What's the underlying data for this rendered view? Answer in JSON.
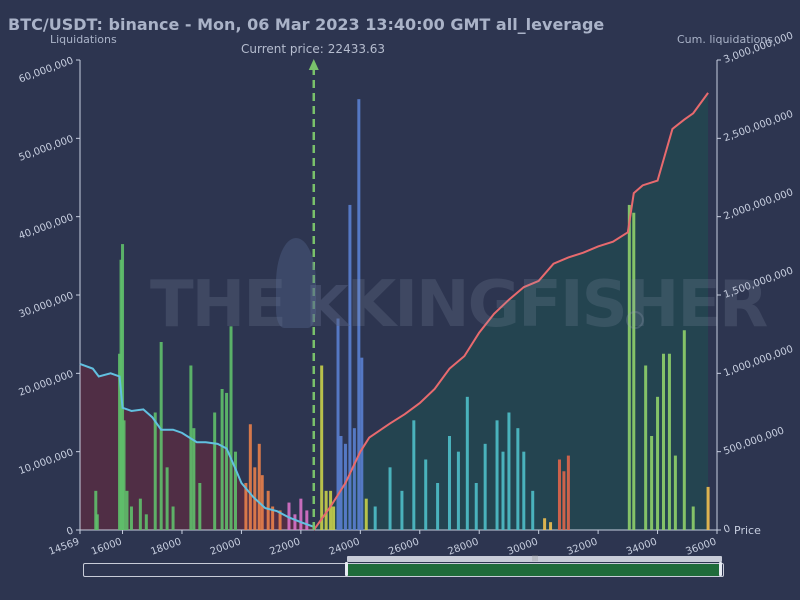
{
  "title": "BTC/USDT: binance - Mon, 06 Mar 2023 13:40:00 GMT all_leverage",
  "current_price_label": "Current price:",
  "current_price_value": "22433.63",
  "left_axis_label": "Liquidations",
  "right_axis_label": "Cum. liquidations",
  "x_axis_end_label": "Price",
  "watermark": {
    "prefix": "THE",
    "suffix": "KINGFISHER"
  },
  "colors": {
    "background": "#2d3550",
    "cum_left": "#62c0e0",
    "cum_right": "#e86a6e",
    "current_price_line": "#79c16b",
    "palette": [
      "#5fbf6a",
      "#e8804a",
      "#d872c8",
      "#c8d04a",
      "#5a7fd0",
      "#4fbfc8",
      "#e0664a",
      "#8fd06a",
      "#f0c050"
    ]
  },
  "chart_data": {
    "type": "bar",
    "title": "BTC/USDT: binance - Mon, 06 Mar 2023 13:40:00 GMT all_leverage",
    "xlabel": "Price",
    "ylabel": "Liquidations",
    "y2label": "Cum. liquidations",
    "xlim": [
      14569,
      36000
    ],
    "ylim": [
      0,
      60000000
    ],
    "y2lim": [
      0,
      3000000000
    ],
    "x_ticks": [
      14569,
      16000,
      18000,
      20000,
      22000,
      24000,
      26000,
      28000,
      30000,
      32000,
      34000,
      36000
    ],
    "y_ticks": [
      0,
      10000000,
      20000000,
      30000000,
      40000000,
      50000000,
      60000000
    ],
    "y_tick_labels": [
      "0",
      "10,000,000",
      "20,000,000",
      "30,000,000",
      "40,000,000",
      "50,000,000",
      "60,000,000"
    ],
    "y2_ticks": [
      0,
      500000000,
      1000000000,
      1500000000,
      2000000000,
      2500000000,
      3000000000
    ],
    "y2_tick_labels": [
      "0",
      "500,000,000",
      "1,000,000,000",
      "1,500,000,000",
      "2,000,000,000",
      "2,500,000,000",
      "3,000,000,000"
    ],
    "current_price": 22433.63,
    "bars": [
      {
        "x": 15100,
        "y": 5000000,
        "c": 0
      },
      {
        "x": 15150,
        "y": 2000000,
        "c": 0
      },
      {
        "x": 15900,
        "y": 22500000,
        "c": 0
      },
      {
        "x": 15950,
        "y": 34500000,
        "c": 0
      },
      {
        "x": 16000,
        "y": 36500000,
        "c": 0
      },
      {
        "x": 16050,
        "y": 14000000,
        "c": 0
      },
      {
        "x": 16150,
        "y": 5000000,
        "c": 0
      },
      {
        "x": 16300,
        "y": 3000000,
        "c": 0
      },
      {
        "x": 16600,
        "y": 4000000,
        "c": 0
      },
      {
        "x": 16800,
        "y": 2000000,
        "c": 0
      },
      {
        "x": 17100,
        "y": 15000000,
        "c": 0
      },
      {
        "x": 17300,
        "y": 24000000,
        "c": 0
      },
      {
        "x": 17500,
        "y": 8000000,
        "c": 0
      },
      {
        "x": 17700,
        "y": 3000000,
        "c": 0
      },
      {
        "x": 18300,
        "y": 21000000,
        "c": 0
      },
      {
        "x": 18400,
        "y": 13000000,
        "c": 0
      },
      {
        "x": 18600,
        "y": 6000000,
        "c": 0
      },
      {
        "x": 19100,
        "y": 15000000,
        "c": 0
      },
      {
        "x": 19350,
        "y": 18000000,
        "c": 0
      },
      {
        "x": 19500,
        "y": 17500000,
        "c": 0
      },
      {
        "x": 19650,
        "y": 26000000,
        "c": 0
      },
      {
        "x": 19800,
        "y": 10000000,
        "c": 0
      },
      {
        "x": 20150,
        "y": 6000000,
        "c": 1
      },
      {
        "x": 20300,
        "y": 13500000,
        "c": 1
      },
      {
        "x": 20450,
        "y": 8000000,
        "c": 1
      },
      {
        "x": 20600,
        "y": 11000000,
        "c": 1
      },
      {
        "x": 20700,
        "y": 7000000,
        "c": 1
      },
      {
        "x": 20900,
        "y": 5000000,
        "c": 1
      },
      {
        "x": 21050,
        "y": 3000000,
        "c": 1
      },
      {
        "x": 21300,
        "y": 2500000,
        "c": 1
      },
      {
        "x": 21600,
        "y": 3500000,
        "c": 2
      },
      {
        "x": 21800,
        "y": 2000000,
        "c": 2
      },
      {
        "x": 22000,
        "y": 4000000,
        "c": 2
      },
      {
        "x": 22200,
        "y": 2500000,
        "c": 2
      },
      {
        "x": 22700,
        "y": 21000000,
        "c": 3
      },
      {
        "x": 22850,
        "y": 5000000,
        "c": 3
      },
      {
        "x": 23000,
        "y": 5000000,
        "c": 3
      },
      {
        "x": 23100,
        "y": 3000000,
        "c": 3
      },
      {
        "x": 23250,
        "y": 27000000,
        "c": 4
      },
      {
        "x": 23350,
        "y": 12000000,
        "c": 4
      },
      {
        "x": 23500,
        "y": 11000000,
        "c": 4
      },
      {
        "x": 23650,
        "y": 41500000,
        "c": 4
      },
      {
        "x": 23800,
        "y": 13000000,
        "c": 4
      },
      {
        "x": 23950,
        "y": 55000000,
        "c": 4
      },
      {
        "x": 24050,
        "y": 22000000,
        "c": 4
      },
      {
        "x": 24200,
        "y": 4000000,
        "c": 3
      },
      {
        "x": 24500,
        "y": 3000000,
        "c": 5
      },
      {
        "x": 25000,
        "y": 8000000,
        "c": 5
      },
      {
        "x": 25400,
        "y": 5000000,
        "c": 5
      },
      {
        "x": 25800,
        "y": 14000000,
        "c": 5
      },
      {
        "x": 26200,
        "y": 9000000,
        "c": 5
      },
      {
        "x": 26600,
        "y": 6000000,
        "c": 5
      },
      {
        "x": 27000,
        "y": 12000000,
        "c": 5
      },
      {
        "x": 27300,
        "y": 10000000,
        "c": 5
      },
      {
        "x": 27600,
        "y": 17000000,
        "c": 5
      },
      {
        "x": 27900,
        "y": 6000000,
        "c": 5
      },
      {
        "x": 28200,
        "y": 11000000,
        "c": 5
      },
      {
        "x": 28600,
        "y": 14000000,
        "c": 5
      },
      {
        "x": 28800,
        "y": 10000000,
        "c": 5
      },
      {
        "x": 29000,
        "y": 15000000,
        "c": 5
      },
      {
        "x": 29300,
        "y": 13000000,
        "c": 5
      },
      {
        "x": 29500,
        "y": 10000000,
        "c": 5
      },
      {
        "x": 29800,
        "y": 5000000,
        "c": 5
      },
      {
        "x": 30200,
        "y": 1500000,
        "c": 8
      },
      {
        "x": 30400,
        "y": 1000000,
        "c": 8
      },
      {
        "x": 30700,
        "y": 9000000,
        "c": 6
      },
      {
        "x": 30850,
        "y": 7500000,
        "c": 6
      },
      {
        "x": 31000,
        "y": 9500000,
        "c": 6
      },
      {
        "x": 33050,
        "y": 41500000,
        "c": 7
      },
      {
        "x": 33200,
        "y": 40500000,
        "c": 7
      },
      {
        "x": 33600,
        "y": 21000000,
        "c": 7
      },
      {
        "x": 33800,
        "y": 12000000,
        "c": 7
      },
      {
        "x": 34000,
        "y": 17000000,
        "c": 7
      },
      {
        "x": 34200,
        "y": 22500000,
        "c": 7
      },
      {
        "x": 34400,
        "y": 22500000,
        "c": 7
      },
      {
        "x": 34600,
        "y": 9500000,
        "c": 7
      },
      {
        "x": 34900,
        "y": 25500000,
        "c": 7
      },
      {
        "x": 35200,
        "y": 3000000,
        "c": 7
      },
      {
        "x": 35700,
        "y": 5500000,
        "c": 8
      }
    ],
    "cum_left": {
      "x": [
        14569,
        15000,
        15200,
        15600,
        15900,
        16000,
        16300,
        16700,
        17000,
        17300,
        17700,
        18000,
        18500,
        18800,
        19200,
        19500,
        19800,
        20000,
        20400,
        20800,
        21200,
        21600,
        22000,
        22434
      ],
      "y": [
        1060000000,
        1030000000,
        980000000,
        1000000000,
        980000000,
        780000000,
        760000000,
        770000000,
        720000000,
        640000000,
        640000000,
        620000000,
        560000000,
        560000000,
        550000000,
        520000000,
        390000000,
        300000000,
        210000000,
        140000000,
        120000000,
        80000000,
        50000000,
        20000000
      ]
    },
    "cum_right": {
      "x": [
        22434,
        23000,
        23500,
        24000,
        24300,
        25000,
        25500,
        26000,
        26500,
        27000,
        27500,
        28000,
        28500,
        29000,
        29500,
        30000,
        30500,
        31000,
        31500,
        32000,
        32500,
        33000,
        33200,
        33500,
        34000,
        34500,
        34900,
        35200,
        35700
      ],
      "y": [
        0,
        150000000,
        300000000,
        500000000,
        590000000,
        680000000,
        740000000,
        810000000,
        900000000,
        1030000000,
        1110000000,
        1260000000,
        1380000000,
        1470000000,
        1550000000,
        1590000000,
        1700000000,
        1740000000,
        1770000000,
        1810000000,
        1840000000,
        1900000000,
        2150000000,
        2200000000,
        2230000000,
        2560000000,
        2620000000,
        2660000000,
        2790000000
      ]
    }
  }
}
